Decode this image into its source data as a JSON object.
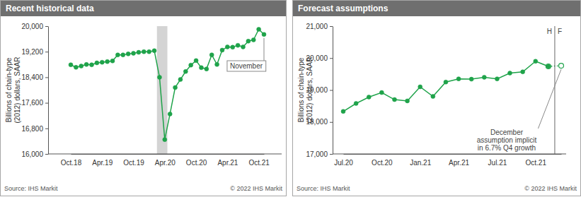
{
  "chart_data": [
    {
      "type": "line",
      "title": "Recent historical data",
      "y_label": [
        "Billions of chain-type",
        "(2012) dollars, SAAR"
      ],
      "categories": [
        "Oct.18",
        null,
        null,
        null,
        null,
        null,
        "Apr.19",
        null,
        null,
        null,
        null,
        null,
        "Oct.19",
        null,
        null,
        null,
        null,
        null,
        "Apr.20",
        null,
        null,
        null,
        null,
        null,
        "Oct.20",
        null,
        null,
        null,
        null,
        null,
        "Apr.21",
        null,
        null,
        null,
        null,
        null,
        "Oct.21",
        null
      ],
      "series": [
        {
          "color": "#1fa34a",
          "marker": "circle",
          "line_style": "solid",
          "values": [
            18790,
            18710,
            18750,
            18800,
            18790,
            18850,
            18870,
            18890,
            18910,
            19100,
            19100,
            19130,
            19150,
            19180,
            19200,
            19200,
            19230,
            18400,
            16450,
            17250,
            18080,
            18330,
            18580,
            18780,
            18920,
            18700,
            18660,
            19100,
            18800,
            19250,
            19350,
            19340,
            19400,
            19350,
            19530,
            19570,
            19900,
            19740
          ]
        }
      ],
      "band": {
        "from": 16.5,
        "to": 18.5
      },
      "ylim": [
        16000,
        20000
      ],
      "yticks": [
        {
          "value": 16000,
          "label": "16,000"
        },
        {
          "value": 16800,
          "label": "16,800"
        },
        {
          "value": 17600,
          "label": "17,600"
        },
        {
          "value": 18400,
          "label": "18,400"
        },
        {
          "value": 19200,
          "label": "19,200"
        },
        {
          "value": 20000,
          "label": "20,000"
        }
      ],
      "grid": false,
      "annotation": {
        "lines": [
          "November"
        ]
      },
      "source": "Source: IHS Markit",
      "copyright": "© 2022 IHS Markit"
    },
    {
      "type": "line",
      "title": "Forecast assumptions",
      "y_label": [
        "Billions of chain-type",
        "(2012) dollars, SAAR"
      ],
      "categories": [
        "Jul.20",
        null,
        null,
        "Oct.20",
        null,
        null,
        "Jan.21",
        null,
        null,
        "Apr.21",
        null,
        null,
        "Jul.21",
        null,
        null,
        "Oct.21",
        null,
        null
      ],
      "series": [
        {
          "color": "#1fa34a",
          "marker": "circle",
          "line_style": "solid",
          "values": [
            18330,
            18580,
            18780,
            18920,
            18700,
            18660,
            19100,
            18800,
            19250,
            19350,
            19340,
            19400,
            19350,
            19530,
            19570,
            19900,
            19740,
            null
          ]
        },
        {
          "color": "#1fa34a",
          "marker": "open-circle",
          "line_style": "dotted",
          "values": [
            null,
            null,
            null,
            null,
            null,
            null,
            null,
            null,
            null,
            null,
            null,
            null,
            null,
            null,
            null,
            null,
            19740,
            19760
          ]
        }
      ],
      "divider": {
        "x": 16.5,
        "labels": [
          "H",
          "F"
        ]
      },
      "ylim": [
        17000,
        21000
      ],
      "yticks": [
        {
          "value": 17000,
          "label": "17,000"
        },
        {
          "value": 18000,
          "label": "18,000"
        },
        {
          "value": 19000,
          "label": "19,000"
        },
        {
          "value": 20000,
          "label": "20,000"
        },
        {
          "value": 21000,
          "label": "21,000"
        }
      ],
      "grid": false,
      "annotation": {
        "lines": [
          "December",
          "assumption implicit",
          "in 6.7% Q4 growth"
        ]
      },
      "source": "Source: IHS Markit",
      "copyright": "© 2022 IHS Markit"
    }
  ]
}
